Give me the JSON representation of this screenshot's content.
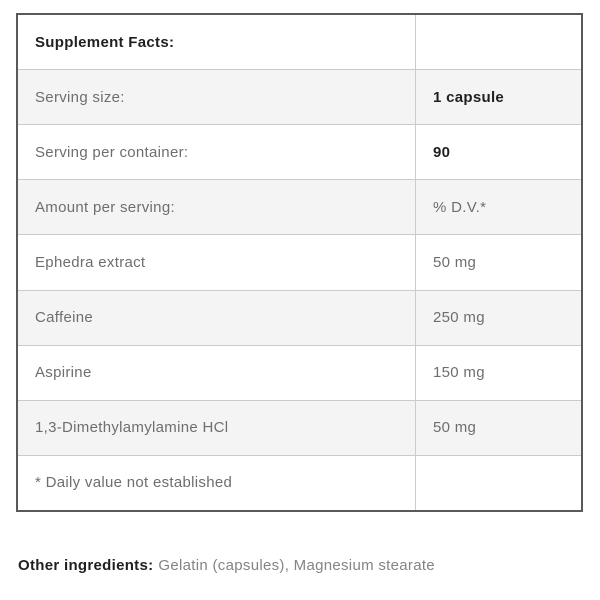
{
  "supplement_facts": {
    "header": "Supplement Facts:",
    "rows": [
      {
        "label": "Serving size:",
        "value": "1 capsule"
      },
      {
        "label": "Serving per container:",
        "value": "90"
      },
      {
        "label": "Amount per serving:",
        "value": "% D.V.*"
      },
      {
        "label": "Ephedra extract",
        "value": "50 mg"
      },
      {
        "label": "Caffeine",
        "value": "250 mg"
      },
      {
        "label": "Aspirine",
        "value": "150 mg"
      },
      {
        "label": "1,3-Dimethylamylamine HCl",
        "value": "50 mg"
      },
      {
        "label": "* Daily value not established",
        "value": ""
      }
    ]
  },
  "other_ingredients": {
    "label": "Other ingredients:",
    "value": "Gelatin (capsules), Magnesium stearate"
  },
  "colors": {
    "outer_border": "#58595b",
    "grid_line": "#cbcbcb",
    "shaded_row_bg": "#f4f4f4",
    "text_dark": "#231f20",
    "text_gray": "#6d6e70",
    "other_ingredients_value_gray": "#828487"
  }
}
